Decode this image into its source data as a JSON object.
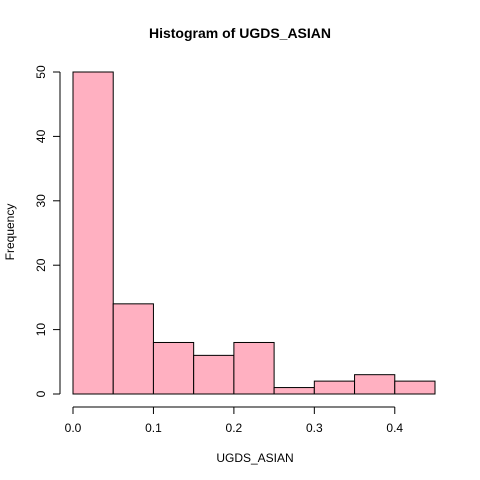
{
  "chart_data": {
    "type": "bar",
    "title": "Histogram of UGDS_ASIAN",
    "xlabel": "UGDS_ASIAN",
    "ylabel": "Frequency",
    "bin_edges": [
      0.0,
      0.05,
      0.1,
      0.15,
      0.2,
      0.25,
      0.3,
      0.35,
      0.4,
      0.45
    ],
    "values": [
      50,
      14,
      8,
      6,
      8,
      1,
      2,
      3,
      2
    ],
    "xlim": [
      0.0,
      0.45
    ],
    "ylim": [
      0,
      50
    ],
    "x_ticks": [
      0.0,
      0.1,
      0.2,
      0.3,
      0.4
    ],
    "x_tick_labels": [
      "0.0",
      "0.1",
      "0.2",
      "0.3",
      "0.4"
    ],
    "y_ticks": [
      0,
      10,
      20,
      30,
      40,
      50
    ],
    "y_tick_labels": [
      "0",
      "10",
      "20",
      "30",
      "40",
      "50"
    ],
    "grid": false,
    "legend": "none",
    "colors": {
      "bar_fill": "#ffb0c1",
      "bar_stroke": "#000000",
      "axis": "#000000",
      "background": "#ffffff"
    }
  }
}
